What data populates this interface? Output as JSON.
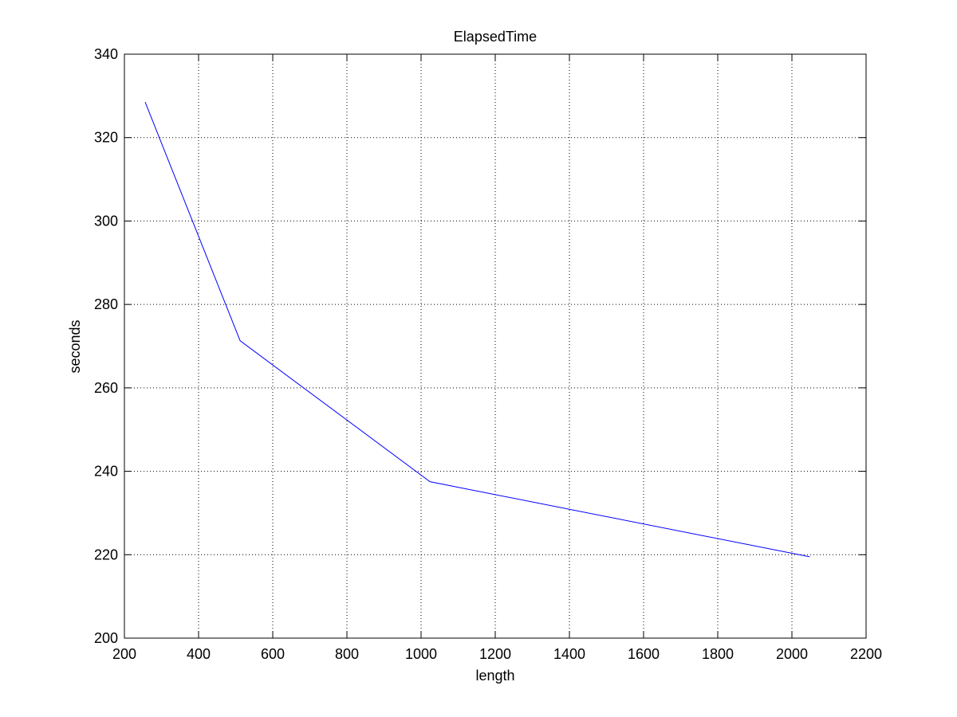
{
  "chart_data": {
    "type": "line",
    "title": "ElapsedTime",
    "xlabel": "length",
    "ylabel": "seconds",
    "xlim": [
      200,
      2200
    ],
    "ylim": [
      200,
      340
    ],
    "xticks": [
      200,
      400,
      600,
      800,
      1000,
      1200,
      1400,
      1600,
      1800,
      2000,
      2200
    ],
    "yticks": [
      200,
      220,
      240,
      260,
      280,
      300,
      320,
      340
    ],
    "grid": true,
    "series": [
      {
        "x": [
          256,
          512,
          1024,
          2048
        ],
        "y": [
          328.5,
          271.3,
          237.5,
          219.5
        ],
        "color": "#0000ff"
      }
    ]
  }
}
